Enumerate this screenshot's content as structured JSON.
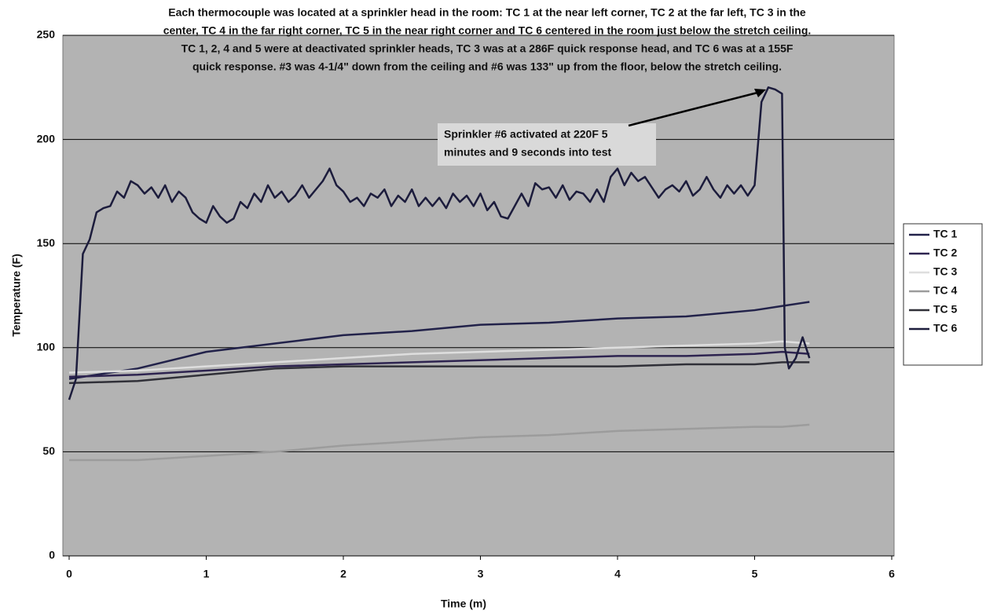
{
  "chart_data": {
    "type": "line",
    "title": [
      "Each thermocouple was located at a sprinkler head in the room: TC 1 at the near left corner, TC 2 at the far left, TC 3 in the",
      "center, TC 4 in the far right corner, TC 5 in the near right corner and TC 6 centered in the room just below the stretch ceiling.",
      "TC 1, 2, 4 and 5 were at deactivated sprinkler heads, TC 3 was at a 286F quick response head, and TC 6 was at a 155F",
      "quick response. #3  was 4-1/4\" down from the ceiling and #6 was 133\" up from the floor, below the stretch ceiling."
    ],
    "annotation": [
      "Sprinkler #6 activated at 220F 5",
      "minutes and 9 seconds into test"
    ],
    "x_label": "Time (m)",
    "y_label": "Temperature (F)",
    "xlim": [
      0,
      6
    ],
    "xticks": [
      0,
      1,
      2,
      3,
      4,
      5,
      6
    ],
    "ylim": [
      0,
      250
    ],
    "yticks": [
      0,
      50,
      100,
      150,
      200,
      250
    ],
    "grid": true,
    "legend": "right",
    "series": [
      {
        "name": "TC 1",
        "color": "#22224a",
        "x": [
          0,
          0.5,
          1,
          1.5,
          2,
          2.5,
          3,
          3.5,
          4,
          4.5,
          5,
          5.2,
          5.4
        ],
        "values": [
          85,
          90,
          98,
          102,
          106,
          108,
          111,
          112,
          114,
          115,
          118,
          120,
          122
        ]
      },
      {
        "name": "TC 2",
        "color": "#2e2450",
        "x": [
          0,
          0.5,
          1,
          1.5,
          2,
          2.5,
          3,
          3.5,
          4,
          4.5,
          5,
          5.2,
          5.4
        ],
        "values": [
          86,
          87,
          89,
          91,
          92,
          93,
          94,
          95,
          96,
          96,
          97,
          98,
          97
        ]
      },
      {
        "name": "TC 3",
        "color": "#dedede",
        "x": [
          0,
          0.5,
          1,
          1.5,
          2,
          2.5,
          3,
          3.5,
          4,
          4.5,
          5,
          5.2,
          5.4
        ],
        "values": [
          88,
          89,
          91,
          93,
          95,
          97,
          98,
          99,
          100,
          101,
          102,
          103,
          102
        ]
      },
      {
        "name": "TC 4",
        "color": "#9c9c9c",
        "x": [
          0,
          0.5,
          1,
          1.5,
          2,
          2.5,
          3,
          3.5,
          4,
          4.5,
          5,
          5.2,
          5.4
        ],
        "values": [
          46,
          46,
          48,
          50,
          53,
          55,
          57,
          58,
          60,
          61,
          62,
          62,
          63
        ]
      },
      {
        "name": "TC 5",
        "color": "#303038",
        "x": [
          0,
          0.5,
          1,
          1.5,
          2,
          2.5,
          3,
          3.5,
          4,
          4.5,
          5,
          5.2,
          5.4
        ],
        "values": [
          83,
          84,
          87,
          90,
          91,
          91,
          91,
          91,
          91,
          92,
          92,
          93,
          93
        ]
      },
      {
        "name": "TC 6",
        "color": "#1c1c3c",
        "x": [
          0,
          0.05,
          0.1,
          0.15,
          0.2,
          0.25,
          0.3,
          0.35,
          0.4,
          0.45,
          0.5,
          0.55,
          0.6,
          0.65,
          0.7,
          0.75,
          0.8,
          0.85,
          0.9,
          0.95,
          1.0,
          1.05,
          1.1,
          1.15,
          1.2,
          1.25,
          1.3,
          1.35,
          1.4,
          1.45,
          1.5,
          1.55,
          1.6,
          1.65,
          1.7,
          1.75,
          1.8,
          1.85,
          1.9,
          1.95,
          2.0,
          2.05,
          2.1,
          2.15,
          2.2,
          2.25,
          2.3,
          2.35,
          2.4,
          2.45,
          2.5,
          2.55,
          2.6,
          2.65,
          2.7,
          2.75,
          2.8,
          2.85,
          2.9,
          2.95,
          3.0,
          3.05,
          3.1,
          3.15,
          3.2,
          3.25,
          3.3,
          3.35,
          3.4,
          3.45,
          3.5,
          3.55,
          3.6,
          3.65,
          3.7,
          3.75,
          3.8,
          3.85,
          3.9,
          3.95,
          4.0,
          4.05,
          4.1,
          4.15,
          4.2,
          4.25,
          4.3,
          4.35,
          4.4,
          4.45,
          4.5,
          4.55,
          4.6,
          4.65,
          4.7,
          4.75,
          4.8,
          4.85,
          4.9,
          4.95,
          5.0,
          5.05,
          5.1,
          5.15,
          5.2,
          5.22,
          5.25,
          5.3,
          5.35,
          5.4
        ],
        "values": [
          75,
          85,
          145,
          152,
          165,
          167,
          168,
          175,
          172,
          180,
          178,
          174,
          177,
          172,
          178,
          170,
          175,
          172,
          165,
          162,
          160,
          168,
          163,
          160,
          162,
          170,
          167,
          174,
          170,
          178,
          172,
          175,
          170,
          173,
          178,
          172,
          176,
          180,
          186,
          178,
          175,
          170,
          172,
          168,
          174,
          172,
          176,
          168,
          173,
          170,
          176,
          168,
          172,
          168,
          172,
          167,
          174,
          170,
          173,
          168,
          174,
          166,
          170,
          163,
          162,
          168,
          174,
          168,
          179,
          176,
          177,
          172,
          178,
          171,
          175,
          174,
          170,
          176,
          170,
          182,
          186,
          178,
          184,
          180,
          182,
          177,
          172,
          176,
          178,
          175,
          180,
          173,
          176,
          182,
          176,
          172,
          178,
          174,
          178,
          173,
          178,
          218,
          225,
          224,
          222,
          100,
          90,
          95,
          105,
          95
        ]
      }
    ]
  }
}
